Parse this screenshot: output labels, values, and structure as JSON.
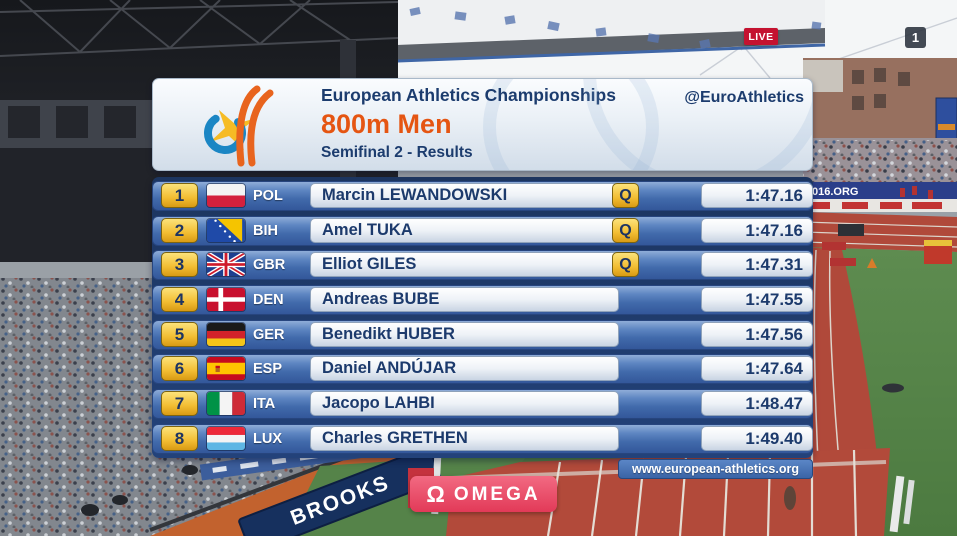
{
  "broadcast": {
    "live_badge": "LIVE",
    "channel_badge": "1"
  },
  "header": {
    "competition": "European Athletics Championships",
    "event": "800m Men",
    "round": "Semifinal 2 - Results",
    "social_handle": "@EuroAthletics"
  },
  "results": [
    {
      "rank": "1",
      "country": "POL",
      "name": "Marcin LEWANDOWSKI",
      "qualified": "Q",
      "time": "1:47.16"
    },
    {
      "rank": "2",
      "country": "BIH",
      "name": "Amel TUKA",
      "qualified": "Q",
      "time": "1:47.16"
    },
    {
      "rank": "3",
      "country": "GBR",
      "name": "Elliot GILES",
      "qualified": "Q",
      "time": "1:47.31"
    },
    {
      "rank": "4",
      "country": "DEN",
      "name": "Andreas BUBE",
      "qualified": "",
      "time": "1:47.55"
    },
    {
      "rank": "5",
      "country": "GER",
      "name": "Benedikt HUBER",
      "qualified": "",
      "time": "1:47.56"
    },
    {
      "rank": "6",
      "country": "ESP",
      "name": "Daniel ANDÚJAR",
      "qualified": "",
      "time": "1:47.64"
    },
    {
      "rank": "7",
      "country": "ITA",
      "name": "Jacopo LAHBI",
      "qualified": "",
      "time": "1:48.47"
    },
    {
      "rank": "8",
      "country": "LUX",
      "name": "Charles GRETHEN",
      "qualified": "",
      "time": "1:49.40"
    }
  ],
  "footer": {
    "website": "www.european-athletics.org",
    "timing_sponsor": "OMEGA",
    "timing_symbol": "Ω"
  },
  "background": {
    "billboard_left": "BROOKS",
    "billboard_right": "016.ORG"
  },
  "colors": {
    "accent_orange": "#e55512",
    "row_blue": "#416aab",
    "gold": "#f2bd32",
    "panel_navy": "#1c3a6c",
    "omega_pink": "#e84a66",
    "live_red": "#c41230"
  }
}
